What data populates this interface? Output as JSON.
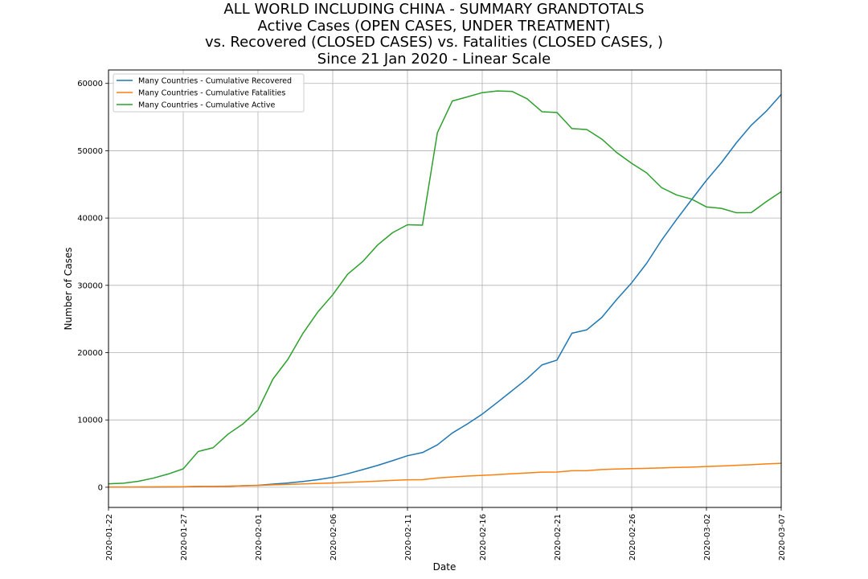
{
  "chart_data": {
    "type": "line",
    "title": [
      "ALL WORLD INCLUDING CHINA - SUMMARY GRANDTOTALS",
      "Active Cases (OPEN CASES, UNDER TREATMENT)",
      "vs. Recovered (CLOSED CASES) vs. Fatalities (CLOSED CASES, )",
      "Since 21 Jan 2020 - Linear Scale"
    ],
    "xlabel": "Date",
    "ylabel": "Number of Cases",
    "x_start": "2020-01-22",
    "x_end": "2020-03-07",
    "xticks": [
      "2020-01-22",
      "2020-01-27",
      "2020-02-01",
      "2020-02-06",
      "2020-02-11",
      "2020-02-16",
      "2020-02-21",
      "2020-02-26",
      "2020-03-02",
      "2020-03-07"
    ],
    "ylim": [
      -3000,
      62000
    ],
    "yticks": [
      0,
      10000,
      20000,
      30000,
      40000,
      50000,
      60000
    ],
    "grid": true,
    "legend_position": "top-left",
    "x": [
      "2020-01-22",
      "2020-01-23",
      "2020-01-24",
      "2020-01-25",
      "2020-01-26",
      "2020-01-27",
      "2020-01-28",
      "2020-01-29",
      "2020-01-30",
      "2020-01-31",
      "2020-02-01",
      "2020-02-02",
      "2020-02-03",
      "2020-02-04",
      "2020-02-05",
      "2020-02-06",
      "2020-02-07",
      "2020-02-08",
      "2020-02-09",
      "2020-02-10",
      "2020-02-11",
      "2020-02-12",
      "2020-02-13",
      "2020-02-14",
      "2020-02-15",
      "2020-02-16",
      "2020-02-17",
      "2020-02-18",
      "2020-02-19",
      "2020-02-20",
      "2020-02-21",
      "2020-02-22",
      "2020-02-23",
      "2020-02-24",
      "2020-02-25",
      "2020-02-26",
      "2020-02-27",
      "2020-02-28",
      "2020-02-29",
      "2020-03-01",
      "2020-03-02",
      "2020-03-03",
      "2020-03-04",
      "2020-03-05",
      "2020-03-06",
      "2020-03-07"
    ],
    "series": [
      {
        "name": "Many Countries - Cumulative Recovered",
        "color": "#1f77b4",
        "values": [
          28,
          30,
          36,
          39,
          52,
          61,
          107,
          126,
          143,
          222,
          284,
          472,
          623,
          852,
          1124,
          1487,
          2011,
          2616,
          3244,
          3946,
          4683,
          5150,
          6295,
          8058,
          9395,
          10865,
          12583,
          14352,
          16121,
          18177,
          18890,
          22886,
          23394,
          25227,
          27905,
          30384,
          33277,
          36711,
          39782,
          42716,
          45602,
          48229,
          51171,
          53797,
          55866,
          58358
        ]
      },
      {
        "name": "Many Countries - Cumulative Fatalities",
        "color": "#ff7f0e",
        "values": [
          17,
          18,
          26,
          42,
          56,
          82,
          131,
          133,
          171,
          213,
          259,
          362,
          426,
          492,
          564,
          634,
          719,
          806,
          906,
          1013,
          1113,
          1118,
          1371,
          1523,
          1666,
          1770,
          1868,
          2007,
          2122,
          2247,
          2251,
          2458,
          2469,
          2629,
          2708,
          2770,
          2814,
          2872,
          2941,
          2996,
          3085,
          3160,
          3254,
          3348,
          3460,
          3558
        ]
      },
      {
        "name": "Many Countries - Cumulative Active",
        "color": "#2ca02c",
        "values": [
          510,
          606,
          879,
          1353,
          1970,
          2737,
          5313,
          5872,
          7896,
          9414,
          11469,
          16072,
          19001,
          22842,
          26031,
          28597,
          31656,
          33519,
          35986,
          37821,
          38997,
          38939,
          52672,
          57384,
          58000,
          58630,
          58882,
          58815,
          57718,
          55794,
          55682,
          53296,
          53144,
          51727,
          49720,
          48119,
          46704,
          44510,
          43430,
          42816,
          41649,
          41435,
          40785,
          40804,
          42430,
          43909
        ]
      }
    ]
  }
}
